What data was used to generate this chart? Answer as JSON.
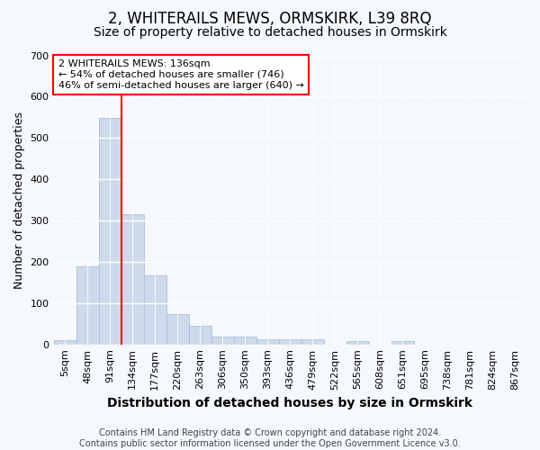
{
  "title": "2, WHITERAILS MEWS, ORMSKIRK, L39 8RQ",
  "subtitle": "Size of property relative to detached houses in Ormskirk",
  "xlabel": "Distribution of detached houses by size in Ormskirk",
  "ylabel": "Number of detached properties",
  "bar_labels": [
    "5sqm",
    "48sqm",
    "91sqm",
    "134sqm",
    "177sqm",
    "220sqm",
    "263sqm",
    "306sqm",
    "350sqm",
    "393sqm",
    "436sqm",
    "479sqm",
    "522sqm",
    "565sqm",
    "608sqm",
    "651sqm",
    "695sqm",
    "738sqm",
    "781sqm",
    "824sqm",
    "867sqm"
  ],
  "bar_values": [
    10,
    190,
    548,
    316,
    168,
    74,
    44,
    20,
    20,
    12,
    12,
    12,
    0,
    8,
    0,
    8,
    0,
    0,
    0,
    0,
    0
  ],
  "bar_color": "#ccdaeb",
  "bar_edge_color": "#aabfda",
  "vline_x_index": 3,
  "annotation_text_line1": "2 WHITERAILS MEWS: 136sqm",
  "annotation_text_line2": "← 54% of detached houses are smaller (746)",
  "annotation_text_line3": "46% of semi-detached houses are larger (640) →",
  "annotation_box_facecolor": "white",
  "annotation_box_edgecolor": "red",
  "vline_color": "red",
  "ylim": [
    0,
    700
  ],
  "yticks": [
    0,
    100,
    200,
    300,
    400,
    500,
    600,
    700
  ],
  "background_color": "#f5f8fc",
  "plot_bg_color": "#f5f8fc",
  "title_fontsize": 12,
  "subtitle_fontsize": 10,
  "xlabel_fontsize": 10,
  "ylabel_fontsize": 9,
  "tick_fontsize": 8,
  "annotation_fontsize": 8,
  "footer_fontsize": 7,
  "footer_line1": "Contains HM Land Registry data © Crown copyright and database right 2024.",
  "footer_line2": "Contains public sector information licensed under the Open Government Licence v3.0."
}
